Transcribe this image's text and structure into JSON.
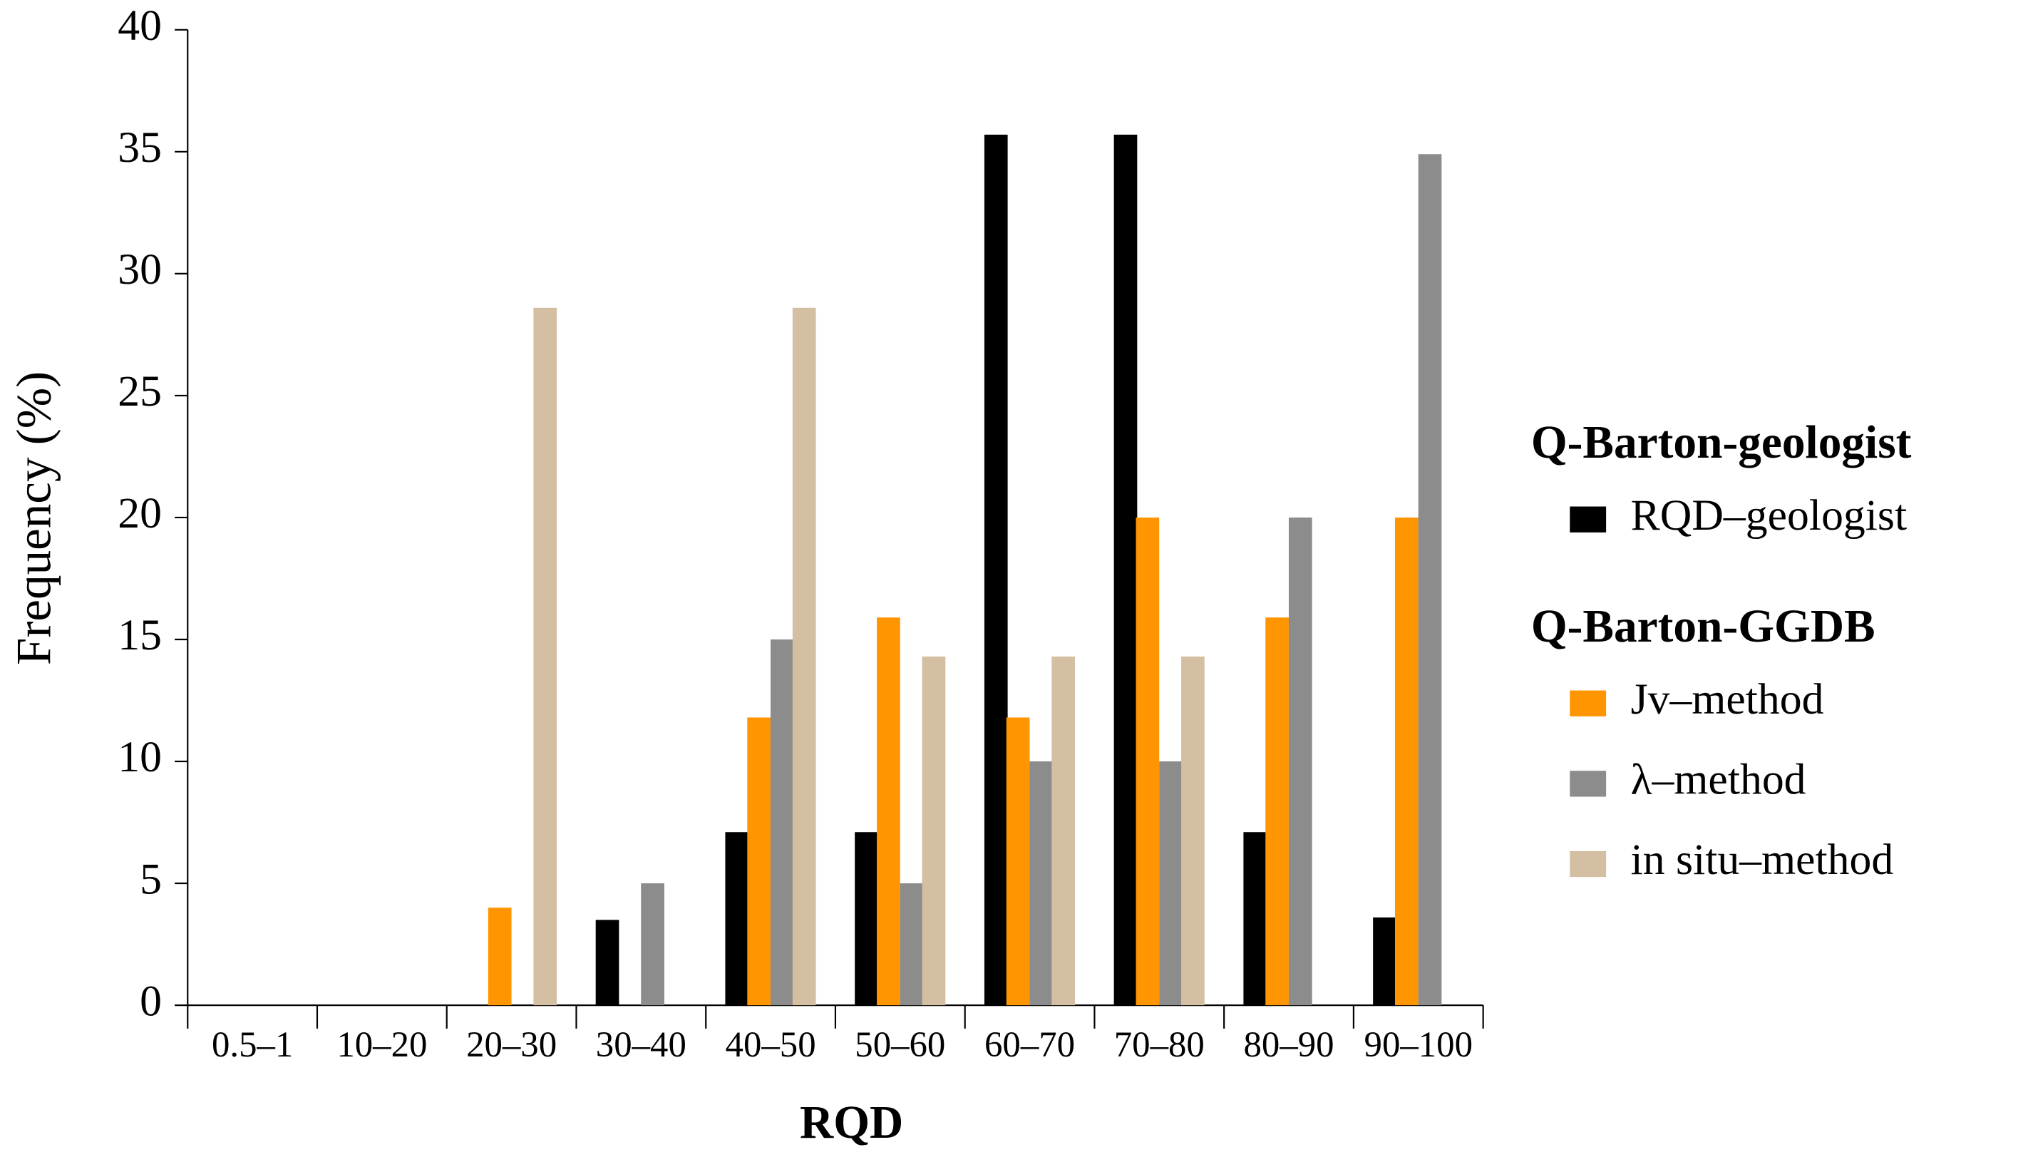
{
  "chart_data": {
    "type": "bar",
    "x_label": "RQD",
    "y_label": "Frequency (%)",
    "categories": [
      "0.5–1",
      "10–20",
      "20–30",
      "30–40",
      "40–50",
      "50–60",
      "60–70",
      "70–80",
      "80–90",
      "90–100"
    ],
    "series": [
      {
        "name": "RQD–geologist",
        "group": "Q-Barton-geologist",
        "color": "#000000",
        "values": [
          0,
          0,
          0,
          3.5,
          7.1,
          7.1,
          35.7,
          35.7,
          7.1,
          3.6
        ]
      },
      {
        "name": "Jv–method",
        "group": "Q-Barton-GGDB",
        "color": "#ff9500",
        "values": [
          0,
          0,
          4,
          0,
          11.8,
          15.9,
          11.8,
          20,
          15.9,
          20
        ]
      },
      {
        "name": "λ–method",
        "group": "Q-Barton-GGDB",
        "color": "#8c8c8c",
        "values": [
          0,
          0,
          0,
          5,
          15,
          5,
          10,
          10,
          20,
          34.9
        ]
      },
      {
        "name": "in situ–method",
        "group": "Q-Barton-GGDB",
        "color": "#d4bfa2",
        "values": [
          0,
          0,
          28.6,
          0,
          28.6,
          14.3,
          14.3,
          14.3,
          0,
          0
        ]
      }
    ],
    "ylim": [
      0,
      40
    ],
    "yticks": [
      0,
      5,
      10,
      15,
      20,
      25,
      30,
      35,
      40
    ]
  }
}
